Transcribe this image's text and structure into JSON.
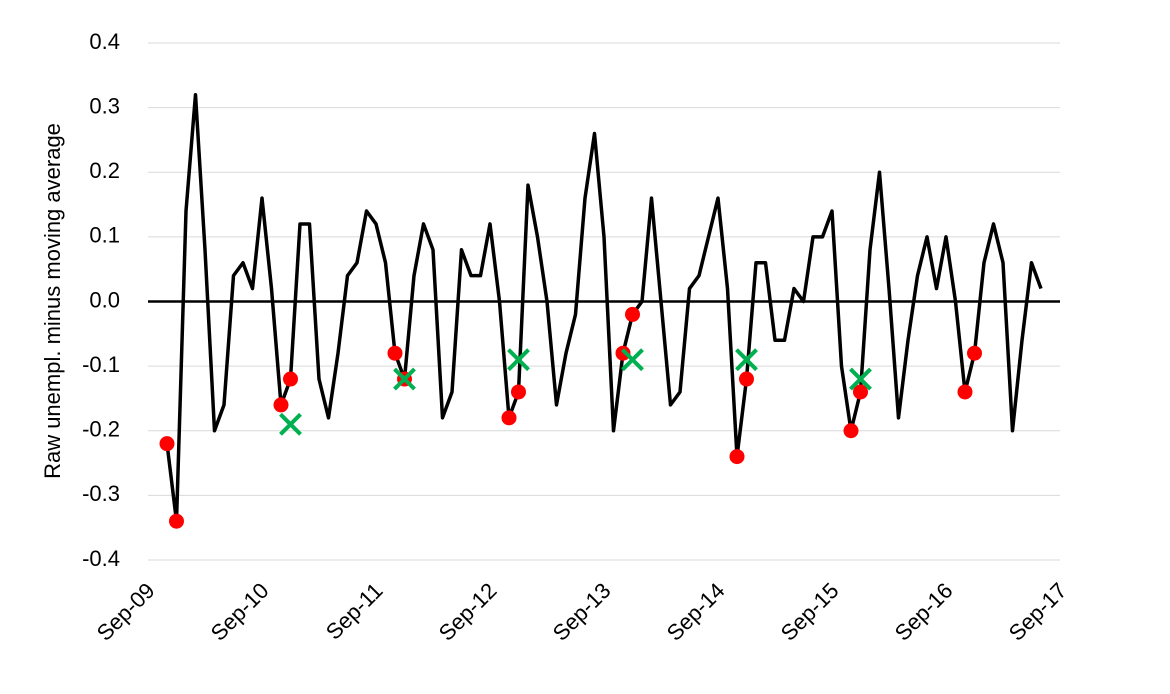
{
  "chart_data": {
    "type": "line",
    "ylabel": "Raw unempl. minus moving average",
    "categories": [
      "Sep-09",
      null,
      null,
      null,
      null,
      null,
      null,
      null,
      null,
      null,
      null,
      null,
      "Sep-10",
      null,
      null,
      null,
      null,
      null,
      null,
      null,
      null,
      null,
      null,
      null,
      "Sep-11",
      null,
      null,
      null,
      null,
      null,
      null,
      null,
      null,
      null,
      null,
      null,
      "Sep-12",
      null,
      null,
      null,
      null,
      null,
      null,
      null,
      null,
      null,
      null,
      null,
      "Sep-13",
      null,
      null,
      null,
      null,
      null,
      null,
      null,
      null,
      null,
      null,
      null,
      "Sep-14",
      null,
      null,
      null,
      null,
      null,
      null,
      null,
      null,
      null,
      null,
      null,
      "Sep-15",
      null,
      null,
      null,
      null,
      null,
      null,
      null,
      null,
      null,
      null,
      null,
      "Sep-16",
      null,
      null,
      null,
      null,
      null,
      null,
      null,
      null,
      null,
      null,
      null,
      "Sep-17"
    ],
    "series": [
      {
        "style": "line",
        "color": "#000000",
        "values": [
          null,
          null,
          -0.22,
          -0.34,
          0.14,
          0.32,
          0.08,
          -0.2,
          -0.16,
          0.04,
          0.06,
          0.02,
          0.16,
          0.02,
          -0.16,
          -0.12,
          0.12,
          0.12,
          -0.12,
          -0.18,
          -0.08,
          0.04,
          0.06,
          0.14,
          0.12,
          0.06,
          -0.08,
          -0.12,
          0.04,
          0.12,
          0.08,
          -0.18,
          -0.14,
          0.08,
          0.04,
          0.04,
          0.12,
          0,
          -0.18,
          -0.14,
          0.18,
          0.1,
          0,
          -0.16,
          -0.08,
          -0.02,
          0.16,
          0.26,
          0.1,
          -0.2,
          -0.08,
          -0.02,
          0,
          0.16,
          0,
          -0.16,
          -0.14,
          0.02,
          0.04,
          0.1,
          0.16,
          0.02,
          -0.24,
          -0.12,
          0.06,
          0.06,
          -0.06,
          -0.06,
          0.02,
          0,
          0.1,
          0.1,
          0.14,
          -0.1,
          -0.2,
          -0.14,
          0.08,
          0.2,
          0.02,
          -0.18,
          -0.06,
          0.04,
          0.1,
          0.02,
          0.1,
          0,
          -0.14,
          -0.08,
          0.06,
          0.12,
          0.06,
          -0.2,
          -0.06,
          0.06,
          0.02,
          null,
          null
        ]
      },
      {
        "style": "dot",
        "color": "#ff0000",
        "values": [
          null,
          null,
          -0.22,
          -0.34,
          null,
          null,
          null,
          null,
          null,
          null,
          null,
          null,
          null,
          null,
          -0.16,
          -0.12,
          null,
          null,
          null,
          null,
          null,
          null,
          null,
          null,
          null,
          null,
          -0.08,
          -0.12,
          null,
          null,
          null,
          null,
          null,
          null,
          null,
          null,
          null,
          null,
          -0.18,
          -0.14,
          null,
          null,
          null,
          null,
          null,
          null,
          null,
          null,
          null,
          null,
          -0.08,
          -0.02,
          null,
          null,
          null,
          null,
          null,
          null,
          null,
          null,
          null,
          null,
          -0.24,
          -0.12,
          null,
          null,
          null,
          null,
          null,
          null,
          null,
          null,
          null,
          null,
          -0.2,
          -0.14,
          null,
          null,
          null,
          null,
          null,
          null,
          null,
          null,
          null,
          null,
          -0.14,
          -0.08,
          null,
          null,
          null,
          null,
          null,
          null,
          null,
          null,
          null
        ]
      },
      {
        "style": "cross",
        "color": "#00b050",
        "values": [
          null,
          null,
          null,
          null,
          null,
          null,
          null,
          null,
          null,
          null,
          null,
          null,
          null,
          null,
          null,
          -0.19,
          null,
          null,
          null,
          null,
          null,
          null,
          null,
          null,
          null,
          null,
          null,
          -0.12,
          null,
          null,
          null,
          null,
          null,
          null,
          null,
          null,
          null,
          null,
          null,
          -0.09,
          null,
          null,
          null,
          null,
          null,
          null,
          null,
          null,
          null,
          null,
          null,
          -0.09,
          null,
          null,
          null,
          null,
          null,
          null,
          null,
          null,
          null,
          null,
          null,
          -0.09,
          null,
          null,
          null,
          null,
          null,
          null,
          null,
          null,
          null,
          null,
          null,
          -0.12,
          null,
          null,
          null,
          null,
          null,
          null,
          null,
          null,
          null,
          null,
          null,
          null,
          null,
          null,
          null,
          null,
          null,
          null,
          null,
          null,
          null
        ]
      }
    ],
    "ylim": [
      -0.4,
      0.4
    ],
    "yticks": [
      -0.4,
      -0.3,
      -0.2,
      -0.1,
      {
        "value": 0,
        "label": "0.0"
      },
      0.1,
      0.2,
      0.3,
      0.4
    ],
    "grid": true
  }
}
